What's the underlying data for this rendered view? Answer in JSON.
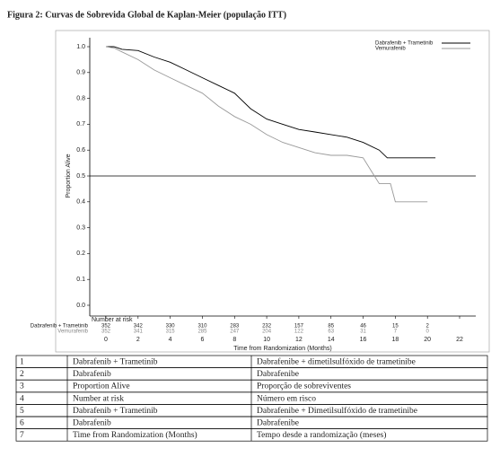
{
  "title": "Figura 2: Curvas de Sobrevida Global de Kaplan-Meier (população ITT)",
  "chart_data": {
    "type": "line",
    "xlabel": "Time from Randomization (Months)",
    "ylabel": "Proportion Alive",
    "xlim": [
      0,
      22
    ],
    "xticks": [
      0,
      2,
      4,
      6,
      8,
      10,
      12,
      14,
      16,
      18,
      20,
      22
    ],
    "ylim": [
      0,
      1
    ],
    "yticks": [
      {
        "value": 0,
        "label": "0.0"
      },
      {
        "value": 0.1,
        "label": "0.1"
      },
      {
        "value": 0.2,
        "label": "0.2"
      },
      {
        "value": 0.3,
        "label": "0.3"
      },
      {
        "value": 0.4,
        "label": "0.4"
      },
      {
        "value": 0.5,
        "label": "0.5"
      },
      {
        "value": 0.6,
        "label": "0.6"
      },
      {
        "value": 0.7,
        "label": "0.7"
      },
      {
        "value": 0.8,
        "label": "0.8"
      },
      {
        "value": 0.9,
        "label": "0.9"
      },
      {
        "value": 1,
        "label": "1.0"
      }
    ],
    "reference_line": 0.5,
    "legend": "upper right",
    "risk_title": "Number at risk",
    "series": [
      {
        "name": "Dabrafenib + Trametinib",
        "color": "#000000",
        "x": [
          0,
          0.5,
          1,
          2,
          3,
          4,
          5,
          6,
          7,
          8,
          9,
          10,
          11,
          12,
          13,
          14,
          15,
          16,
          17,
          17.5,
          18,
          19,
          20,
          20.5
        ],
        "values": [
          1,
          1,
          0.99,
          0.985,
          0.96,
          0.94,
          0.91,
          0.88,
          0.85,
          0.82,
          0.76,
          0.72,
          0.7,
          0.68,
          0.67,
          0.66,
          0.65,
          0.63,
          0.6,
          0.57,
          0.57,
          0.57,
          0.57,
          0.57
        ],
        "at_risk": [
          352,
          342,
          330,
          310,
          283,
          232,
          157,
          85,
          46,
          15,
          2
        ]
      },
      {
        "name": "Vemurafenib",
        "color": "#999999",
        "x": [
          0,
          0.5,
          1,
          2,
          3,
          4,
          5,
          6,
          7,
          8,
          9,
          10,
          11,
          12,
          13,
          14,
          15,
          16,
          16.5,
          17,
          17.7,
          18,
          19,
          20
        ],
        "values": [
          1,
          0.995,
          0.98,
          0.95,
          0.91,
          0.88,
          0.85,
          0.82,
          0.77,
          0.73,
          0.7,
          0.66,
          0.63,
          0.61,
          0.59,
          0.58,
          0.58,
          0.57,
          0.52,
          0.47,
          0.47,
          0.4,
          0.4,
          0.4
        ],
        "at_risk": [
          352,
          341,
          315,
          285,
          247,
          204,
          122,
          63,
          31,
          7,
          0
        ]
      }
    ]
  },
  "table": {
    "rows": [
      [
        "1",
        "Dabrafenib + Trametinib",
        "Dabrafenibe + dimetilsulfóxido de trametinibe"
      ],
      [
        "2",
        "Dabrafenib",
        "Dabrafenibe"
      ],
      [
        "3",
        "Proportion Alive",
        "Proporção de sobreviventes"
      ],
      [
        "4",
        "Number at risk",
        "Número em risco"
      ],
      [
        "5",
        "Dabrafenib + Trametinib",
        "Dabrafenibe + Dimetilsulfóxido de trametinibe"
      ],
      [
        "6",
        "Dabrafenib",
        "Dabrafenibe"
      ],
      [
        "7",
        "Time from Randomization (Months)",
        "Tempo desde a randomização (meses)"
      ]
    ]
  }
}
